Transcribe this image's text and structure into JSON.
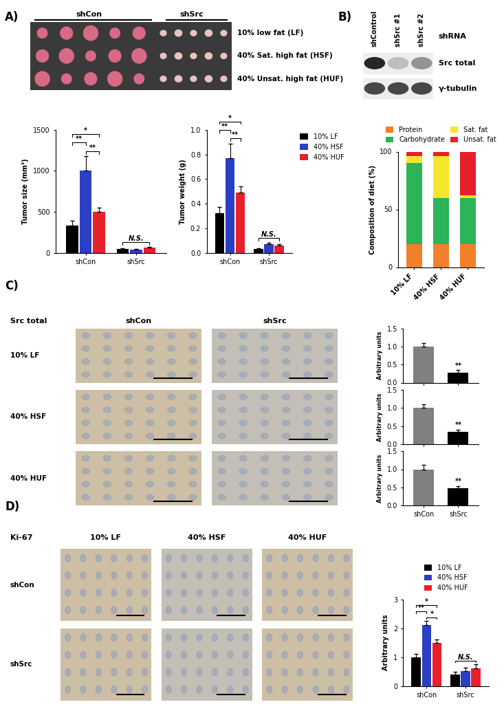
{
  "chart_data": [
    {
      "type": "photo",
      "panel": "A)",
      "column_labels": [
        "shCon",
        "shSrc"
      ],
      "row_labels": [
        "10% low fat (LF)",
        "40% Sat. high fat (HSF)",
        "40% Unsat. high fat (HUF)"
      ]
    },
    {
      "type": "bar",
      "ylabel": "Tumor size (mm³)",
      "categories": [
        "shCon",
        "shSrc"
      ],
      "series": [
        {
          "name": "10% LF",
          "color": "#000000",
          "values": [
            330,
            45
          ],
          "errors": [
            60,
            8
          ]
        },
        {
          "name": "40% HSF",
          "color": "#2b3fc4",
          "values": [
            1000,
            40
          ],
          "errors": [
            180,
            8
          ]
        },
        {
          "name": "40% HUF",
          "color": "#e8202a",
          "values": [
            500,
            60
          ],
          "errors": [
            50,
            10
          ]
        }
      ],
      "ylim": [
        0,
        1500
      ],
      "yticks": [
        0,
        500,
        1000,
        1500
      ],
      "significance": [
        {
          "category": "shCon",
          "series": [
            0,
            2
          ],
          "text": "*"
        },
        {
          "category": "shCon",
          "series": [
            0,
            1
          ],
          "text": "**"
        },
        {
          "category": "shCon",
          "series": [
            1,
            2
          ],
          "text": "**"
        },
        {
          "category": "shSrc",
          "series": [
            0,
            2
          ],
          "text": "N.S."
        }
      ]
    },
    {
      "type": "bar",
      "ylabel": "Tumor weight (g)",
      "categories": [
        "shCon",
        "shSrc"
      ],
      "series": [
        {
          "name": "10% LF",
          "color": "#000000",
          "values": [
            0.32,
            0.03
          ],
          "errors": [
            0.05,
            0.005
          ]
        },
        {
          "name": "40% HSF",
          "color": "#2b3fc4",
          "values": [
            0.77,
            0.07
          ],
          "errors": [
            0.12,
            0.01
          ]
        },
        {
          "name": "40% HUF",
          "color": "#e8202a",
          "values": [
            0.49,
            0.06
          ],
          "errors": [
            0.05,
            0.01
          ]
        }
      ],
      "ylim": [
        0.0,
        1.0
      ],
      "yticks": [
        0.0,
        0.2,
        0.4,
        0.6,
        0.8,
        1.0
      ],
      "legend": "upper left",
      "significance": [
        {
          "category": "shCon",
          "series": [
            0,
            2
          ],
          "text": "*"
        },
        {
          "category": "shCon",
          "series": [
            0,
            1
          ],
          "text": "**"
        },
        {
          "category": "shCon",
          "series": [
            1,
            2
          ],
          "text": "**"
        },
        {
          "category": "shSrc",
          "series": [
            0,
            2
          ],
          "text": "N.S."
        }
      ]
    },
    {
      "type": "blot",
      "panel": "B)",
      "header": "shRNA",
      "lanes": [
        "shControl",
        "shSrc #1",
        "shSrc #2"
      ],
      "bands": [
        {
          "name": "Src total",
          "intensity": [
            1.0,
            0.3,
            0.5
          ]
        },
        {
          "name": "γ-tubulin",
          "intensity": [
            0.85,
            0.85,
            0.85
          ]
        }
      ]
    },
    {
      "type": "bar",
      "stacked": true,
      "ylabel": "Composition of diet (%)",
      "categories": [
        "10% LF",
        "40% HSF",
        "40% HUF"
      ],
      "series": [
        {
          "name": "Protein",
          "color": "#f47f2a",
          "values": [
            20,
            20,
            20
          ]
        },
        {
          "name": "Carbohydrate",
          "color": "#2db35a",
          "values": [
            70,
            40,
            40
          ]
        },
        {
          "name": "Sat. fat",
          "color": "#f5e62a",
          "values": [
            6,
            36,
            2
          ]
        },
        {
          "name": "Unsat. fat",
          "color": "#e8202a",
          "values": [
            4,
            4,
            38
          ]
        }
      ],
      "ylim": [
        0,
        100
      ],
      "yticks": [
        0,
        50,
        100
      ],
      "legend": "lower center"
    },
    {
      "type": "micrograph",
      "panel": "C)",
      "corner_label": "Src total",
      "column_labels": [
        "shCon",
        "shSrc"
      ],
      "row_labels": [
        "10% LF",
        "40% HSF",
        "40% HUF"
      ]
    },
    {
      "type": "bar",
      "ylabel": "Arbitrary units",
      "categories": [
        "shCon",
        "shSrc"
      ],
      "values": [
        1.0,
        0.28
      ],
      "errors": [
        0.1,
        0.07
      ],
      "colors": [
        "#808080",
        "#000000"
      ],
      "ylim": [
        0.0,
        1.5
      ],
      "yticks": [
        0.0,
        0.5,
        1.0,
        1.5
      ],
      "tick_labels": "y",
      "significance": [
        {
          "category": "shSrc",
          "text": "**"
        }
      ]
    },
    {
      "type": "bar",
      "ylabel": "Arbitrary units",
      "categories": [
        "shCon",
        "shSrc"
      ],
      "values": [
        1.0,
        0.33
      ],
      "errors": [
        0.1,
        0.07
      ],
      "colors": [
        "#808080",
        "#000000"
      ],
      "ylim": [
        0.0,
        1.5
      ],
      "yticks": [
        0.0,
        0.5,
        1.0,
        1.5
      ],
      "tick_labels": "y",
      "significance": [
        {
          "category": "shSrc",
          "text": "**"
        }
      ]
    },
    {
      "type": "bar",
      "ylabel": "Arbitrary units",
      "categories": [
        "shCon",
        "shSrc"
      ],
      "values": [
        1.0,
        0.47
      ],
      "errors": [
        0.12,
        0.07
      ],
      "colors": [
        "#808080",
        "#000000"
      ],
      "ylim": [
        0.0,
        1.5
      ],
      "yticks": [
        0.0,
        0.5,
        1.0,
        1.5
      ],
      "significance": [
        {
          "category": "shSrc",
          "text": "**"
        }
      ]
    },
    {
      "type": "micrograph",
      "panel": "D)",
      "corner_label": "Ki-67",
      "column_labels": [
        "10% LF",
        "40% HSF",
        "40% HUF"
      ],
      "row_labels": [
        "shCon",
        "shSrc"
      ]
    },
    {
      "type": "bar",
      "ylabel": "Arbitrary units",
      "categories": [
        "shCon",
        "shSrc"
      ],
      "series": [
        {
          "name": "10% LF",
          "color": "#000000",
          "values": [
            1.0,
            0.4
          ],
          "errors": [
            0.1,
            0.1
          ]
        },
        {
          "name": "40% HSF",
          "color": "#2b3fc4",
          "values": [
            2.1,
            0.52
          ],
          "errors": [
            0.15,
            0.12
          ]
        },
        {
          "name": "40% HUF",
          "color": "#e8202a",
          "values": [
            1.48,
            0.6
          ],
          "errors": [
            0.12,
            0.15
          ]
        }
      ],
      "ylim": [
        0,
        3
      ],
      "yticks": [
        0,
        1,
        2,
        3
      ],
      "legend": "lower center",
      "significance": [
        {
          "category": "shCon",
          "series": [
            0,
            2
          ],
          "text": "*"
        },
        {
          "category": "shCon",
          "series": [
            0,
            1
          ],
          "text": "**"
        },
        {
          "category": "shCon",
          "series": [
            1,
            2
          ],
          "text": "*"
        },
        {
          "category": "shSrc",
          "series": [
            0,
            2
          ],
          "text": "N.S."
        }
      ]
    }
  ]
}
